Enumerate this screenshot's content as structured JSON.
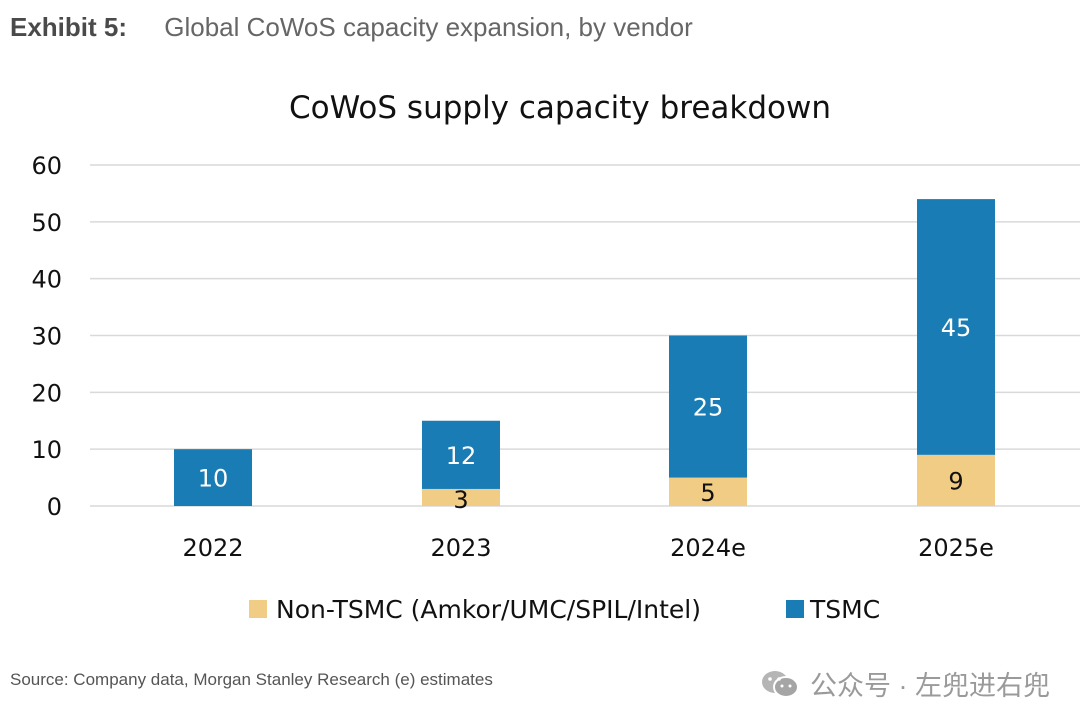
{
  "exhibit": {
    "label": "Exhibit 5:",
    "title": "Global CoWoS capacity expansion, by vendor"
  },
  "chart_data": {
    "type": "bar",
    "stacked": true,
    "title": "CoWoS supply capacity breakdown",
    "categories": [
      "2022",
      "2023",
      "2024e",
      "2025e"
    ],
    "series": [
      {
        "name": "Non-TSMC (Amkor/UMC/SPIL/Intel)",
        "color": "#F0CC85",
        "values": [
          0,
          3,
          5,
          9
        ],
        "labels": [
          "",
          "3",
          "5",
          "9"
        ]
      },
      {
        "name": "TSMC",
        "color": "#1A7CB4",
        "values": [
          10,
          12,
          25,
          45
        ],
        "labels": [
          "10",
          "12",
          "25",
          "45"
        ]
      }
    ],
    "ylim": [
      0,
      60
    ],
    "yticks": [
      0,
      10,
      20,
      30,
      40,
      50,
      60
    ],
    "xlabel": "",
    "ylabel": "",
    "grid": true,
    "legend_position": "bottom"
  },
  "footer": {
    "source": "Source: Company data, Morgan Stanley Research (e) estimates",
    "watermark": "公众号 · 左兜进右兜"
  }
}
